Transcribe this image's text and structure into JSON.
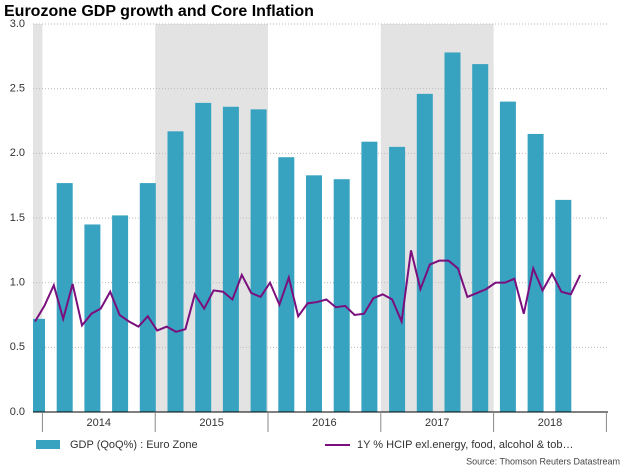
{
  "chart_data": {
    "type": "bar_line",
    "title": "Eurozone GDP growth and Core Inflation",
    "source": "Source: Thomson Reuters Datastream",
    "xticks": [
      "2014",
      "2015",
      "2016",
      "2017",
      "2018"
    ],
    "ylim": [
      0,
      3
    ],
    "yticks": [
      {
        "value": 0,
        "label": "0.0"
      },
      {
        "value": 0.5,
        "label": "0.5"
      },
      {
        "value": 1,
        "label": "1.0"
      },
      {
        "value": 1.5,
        "label": "1.5"
      },
      {
        "value": 2,
        "label": "2.0"
      },
      {
        "value": 2.5,
        "label": "2.5"
      },
      {
        "value": 3,
        "label": "3.0"
      }
    ],
    "grid": true,
    "series": [
      {
        "name": "GDP (QoQ%) : Euro Zone",
        "type": "bar",
        "color": "#38a3c0",
        "values": [
          0.72,
          1.77,
          1.45,
          1.52,
          1.77,
          2.17,
          2.39,
          2.36,
          2.34,
          1.97,
          1.83,
          1.8,
          2.09,
          2.05,
          2.46,
          2.78,
          2.69,
          2.4,
          2.15,
          1.64
        ]
      },
      {
        "name": "1Y % HCIP exl.energy, food, alcohol & tob…",
        "type": "line",
        "color": "#7a0f7d",
        "values": [
          0.7,
          0.82,
          0.98,
          0.72,
          0.99,
          0.67,
          0.76,
          0.8,
          0.93,
          0.75,
          0.7,
          0.66,
          0.74,
          0.63,
          0.66,
          0.62,
          0.64,
          0.91,
          0.8,
          0.94,
          0.93,
          0.87,
          1.06,
          0.92,
          0.89,
          1.0,
          0.83,
          1.04,
          0.74,
          0.84,
          0.85,
          0.87,
          0.81,
          0.82,
          0.75,
          0.76,
          0.88,
          0.91,
          0.87,
          0.7,
          1.25,
          0.95,
          1.14,
          1.17,
          1.17,
          1.11,
          0.89,
          0.92,
          0.95,
          1.0,
          1.0,
          1.03,
          0.76,
          1.11,
          0.94,
          1.07,
          0.93,
          0.91,
          1.06
        ]
      }
    ]
  }
}
